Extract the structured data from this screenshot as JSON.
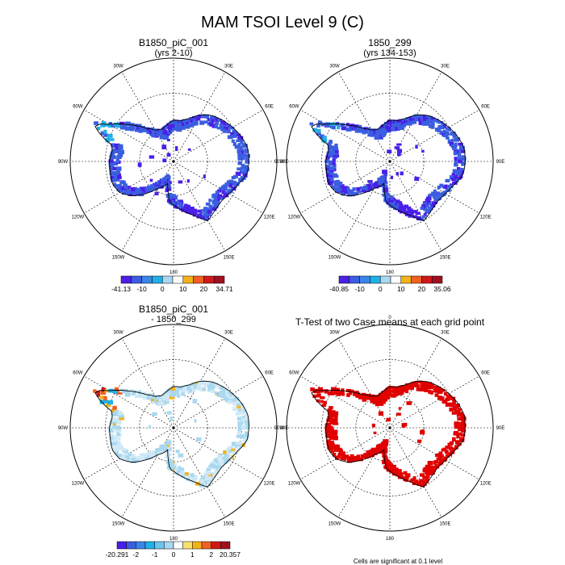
{
  "title": "MAM TSOI Level 9 (C)",
  "lon_labels": [
    "0",
    "30E",
    "60E",
    "90E",
    "120E",
    "150E",
    "180",
    "150W",
    "120W",
    "90W",
    "60W",
    "30W"
  ],
  "colors": {
    "deep_blue": "#4a1fe8",
    "mid_blue": "#3b5ee0",
    "light_blue": "#1fb0e8",
    "pale_blue": "#a9d8f0",
    "white": "#ffffff",
    "yellow": "#f4b21a",
    "orange": "#f06020",
    "red": "#d01818",
    "dark_red": "#a01020",
    "sig_red": "#e00000"
  },
  "panels": [
    {
      "id": "p1",
      "title_line1": "B1850_piC_001",
      "title_line2": "(yrs 2-10)",
      "mode": "blue",
      "colorbar": {
        "colors": [
          "#4a1fe8",
          "#3b5ee0",
          "#3a86e8",
          "#1fb0e8",
          "#a9d8f0",
          "#ffffff",
          "#f4b21a",
          "#f06020",
          "#d01818",
          "#a01020"
        ],
        "labels": [
          "-41.13",
          "-10",
          "0",
          "10",
          "20",
          "34.71"
        ]
      }
    },
    {
      "id": "p2",
      "title_line1": "1850_299",
      "title_line2": "(yrs 134-153)",
      "mode": "blue",
      "colorbar": {
        "colors": [
          "#4a1fe8",
          "#3b5ee0",
          "#3a86e8",
          "#1fb0e8",
          "#a9d8f0",
          "#ffffff",
          "#f4b21a",
          "#f06020",
          "#d01818",
          "#a01020"
        ],
        "labels": [
          "-40.85",
          "-10",
          "0",
          "10",
          "20",
          "35.06"
        ]
      }
    },
    {
      "id": "p3",
      "title_line1": "B1850_piC_001",
      "title_line2": "- 1850_299",
      "mode": "diff",
      "colorbar": {
        "colors": [
          "#4a1fe8",
          "#3b5ee0",
          "#3a86e8",
          "#1fb0e8",
          "#6cc4ee",
          "#a9d8f0",
          "#ffffff",
          "#f8e070",
          "#f4b21a",
          "#f06020",
          "#d01818",
          "#a01020"
        ],
        "labels": [
          "-20.291",
          "-2",
          "-1",
          "0",
          "1",
          "2",
          "20.357"
        ]
      }
    },
    {
      "id": "p4",
      "title_line1": "T-Test of two Case means at each grid point",
      "title_line2": "",
      "mode": "sig",
      "footnote": "Cells are significant at 0.1 level"
    }
  ],
  "chart_data": {
    "type": "heatmap",
    "title": "MAM TSOI Level 9 (C)",
    "projection": "south polar stereographic",
    "longitude_labels": [
      "0",
      "30E",
      "60E",
      "90E",
      "120E",
      "150E",
      "180",
      "150W",
      "120W",
      "90W",
      "60W",
      "30W"
    ],
    "panels": [
      {
        "name": "B1850_piC_001",
        "subtitle": "(yrs 2-10)",
        "min": -41.13,
        "max": 34.71,
        "colorbar_labels": [
          "-41.13",
          "-10",
          "0",
          "10",
          "20",
          "34.71"
        ]
      },
      {
        "name": "1850_299",
        "subtitle": "(yrs 134-153)",
        "min": -40.85,
        "max": 35.06,
        "colorbar_labels": [
          "-40.85",
          "-10",
          "0",
          "10",
          "20",
          "35.06"
        ]
      },
      {
        "name": "B1850_piC_001 - 1850_299",
        "min": -20.291,
        "max": 20.357,
        "colorbar_labels": [
          "-20.291",
          "-2",
          "-1",
          "0",
          "1",
          "2",
          "20.357"
        ]
      },
      {
        "name": "T-Test of two Case means at each grid point",
        "note": "Cells are significant at 0.1 level"
      }
    ]
  }
}
